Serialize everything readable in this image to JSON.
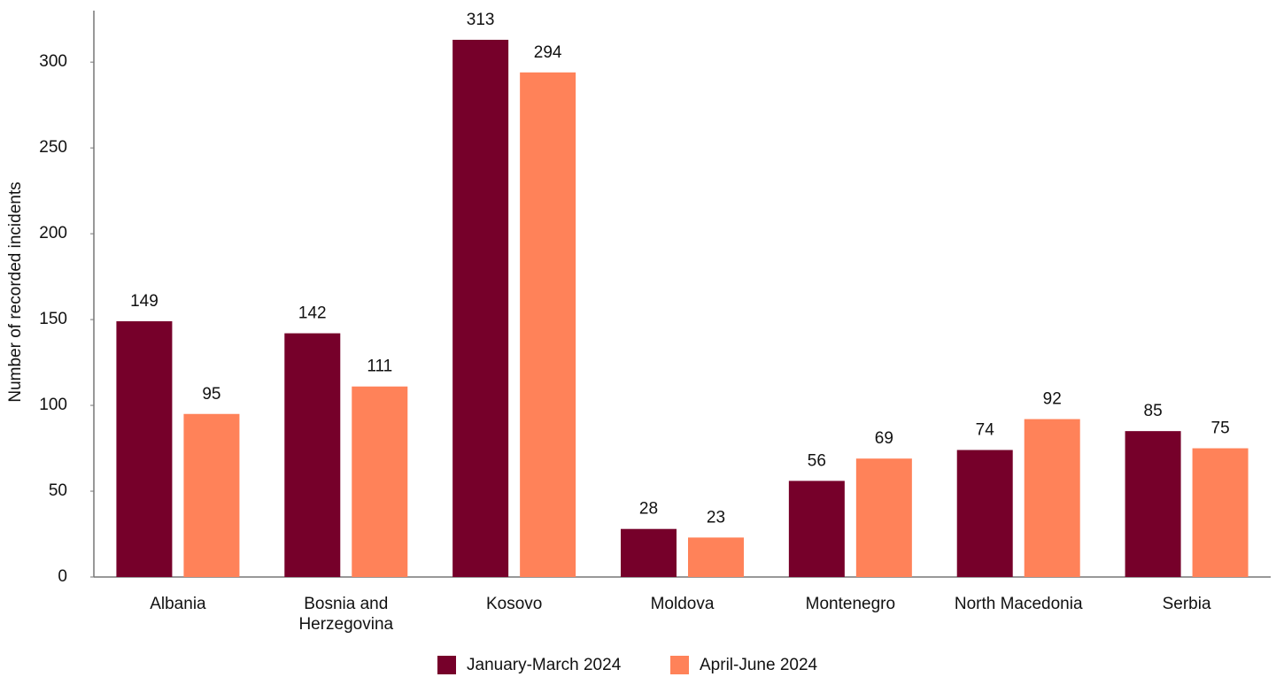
{
  "chart_data": {
    "type": "bar",
    "y_label": "Number of recorded incidents",
    "categories": [
      "Albania",
      "Bosnia and Herzegovina",
      "Kosovo",
      "Moldova",
      "Montenegro",
      "North Macedonia",
      "Serbia"
    ],
    "series": [
      {
        "name": "January-March 2024",
        "color": "#76002a",
        "values": [
          149,
          142,
          313,
          28,
          56,
          74,
          85
        ]
      },
      {
        "name": "April-June 2024",
        "color": "#ff8259",
        "values": [
          95,
          111,
          294,
          23,
          69,
          92,
          75
        ]
      }
    ],
    "ylim": [
      0,
      330
    ],
    "yticks": [
      0,
      50,
      100,
      150,
      200,
      250,
      300
    ],
    "grid": false,
    "legend": "bottom"
  }
}
